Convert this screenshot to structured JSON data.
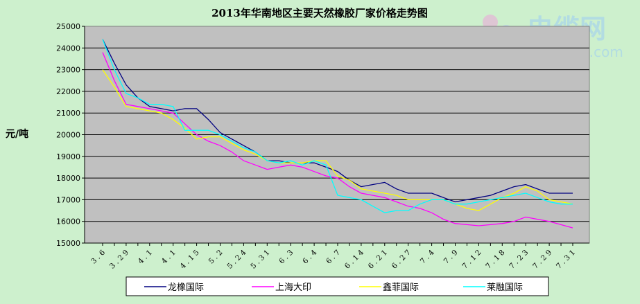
{
  "watermark": {
    "brand_cn": "电缆网",
    "brand_url": "cableabc.com"
  },
  "colors": {
    "background": "#cdf0cd",
    "plot_area": "#c0c0c0",
    "gridline": "#000000"
  },
  "chart_data": {
    "type": "line",
    "title": "2013年华南地区主要天然橡胶厂家价格走势图",
    "xlabel": "",
    "ylabel": "元/吨",
    "ylim": [
      15000,
      25000
    ],
    "y_ticks": [
      "25000",
      "24000",
      "23000",
      "22000",
      "21000",
      "20000",
      "19000",
      "18000",
      "17000",
      "16000",
      "15000"
    ],
    "grid": "horizontal",
    "legend_position": "bottom",
    "categories": [
      "3.6",
      "3.29",
      "4.1",
      "4.1",
      "4.15",
      "5.2",
      "5.24",
      "5.31",
      "6.3",
      "6.4",
      "6.7",
      "6.14",
      "6.21",
      "6.27",
      "7.4",
      "7.9",
      "7.12",
      "7.18",
      "7.23",
      "7.29",
      "7.31"
    ],
    "x": [
      "3.6",
      "",
      "3.29",
      "",
      "4.1",
      "",
      "4.1",
      "",
      "4.15",
      "",
      "5.2",
      "",
      "5.24",
      "",
      "5.31",
      "",
      "6.3",
      "",
      "6.4",
      "",
      "6.7",
      "",
      "6.14",
      "",
      "6.21",
      "",
      "6.27",
      "",
      "7.4",
      "",
      "7.9",
      "",
      "7.12",
      "",
      "7.18",
      "",
      "7.23",
      "",
      "7.29",
      "",
      "7.31"
    ],
    "series": [
      {
        "name": "龙橡国际",
        "color": "#000080",
        "values": [
          24400,
          23300,
          22300,
          21700,
          21300,
          21200,
          21100,
          21200,
          21200,
          20700,
          20100,
          19800,
          19500,
          19200,
          18800,
          18800,
          18700,
          18700,
          18700,
          18500,
          18300,
          17900,
          17600,
          17700,
          17800,
          17500,
          17300,
          17300,
          17300,
          17100,
          16900,
          17000,
          17100,
          17200,
          17400,
          17600,
          17700,
          17500,
          17300,
          17300,
          17300
        ]
      },
      {
        "name": "上海大印",
        "color": "#ff00ff",
        "values": [
          23800,
          22500,
          21400,
          21300,
          21200,
          21100,
          21000,
          20500,
          20000,
          19700,
          19500,
          19200,
          18800,
          18600,
          18400,
          18500,
          18600,
          18500,
          18300,
          18100,
          18000,
          17600,
          17300,
          17200,
          17100,
          16900,
          16700,
          16600,
          16400,
          16100,
          15900,
          15850,
          15800,
          15850,
          15900,
          16000,
          16200,
          16100,
          16000,
          15850,
          15700
        ]
      },
      {
        "name": "鑫菲国际",
        "color": "#ffff00",
        "values": [
          23000,
          22200,
          21300,
          21200,
          21100,
          21000,
          20700,
          20300,
          19800,
          19900,
          19900,
          19600,
          19300,
          19100,
          18800,
          18700,
          18700,
          18700,
          18800,
          18800,
          18100,
          17900,
          17500,
          17400,
          17300,
          17200,
          17000,
          17000,
          17000,
          17000,
          16800,
          16600,
          16500,
          16800,
          17100,
          17300,
          17600,
          17400,
          17000,
          16900,
          16800
        ]
      },
      {
        "name": "莱融国际",
        "color": "#00ffff",
        "values": [
          24400,
          23000,
          21900,
          21700,
          21400,
          21400,
          21300,
          20200,
          20200,
          20200,
          20000,
          19700,
          19400,
          19200,
          18800,
          18700,
          18800,
          18600,
          18800,
          18600,
          17200,
          17100,
          17000,
          16700,
          16400,
          16500,
          16500,
          16800,
          17000,
          17000,
          16800,
          16800,
          16900,
          17000,
          17100,
          17200,
          17300,
          17100,
          16900,
          16800,
          16800
        ]
      }
    ]
  }
}
